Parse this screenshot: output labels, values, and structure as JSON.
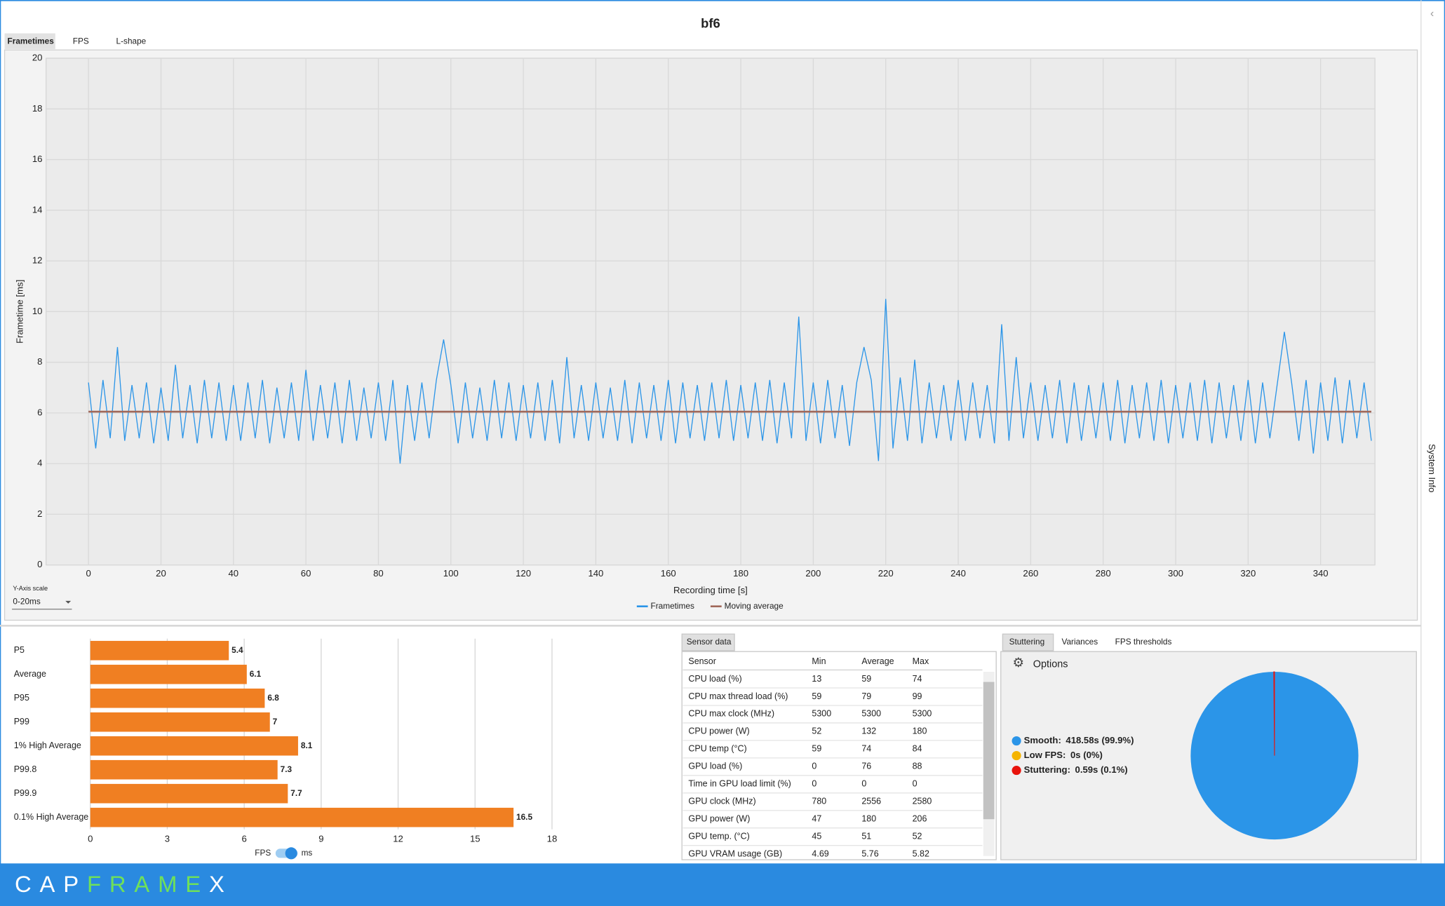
{
  "header": {
    "title": "bf6",
    "side_tab": "System Info",
    "logo": [
      "CAP",
      "FRAME",
      "X"
    ]
  },
  "tabs": [
    "Frametimes",
    "FPS",
    "L-shape"
  ],
  "chart_data": [
    {
      "type": "line",
      "ylabel": "Frametime [ms]",
      "xlabel": "Recording time [s]",
      "xlim": [
        -11.7,
        355
      ],
      "ylim": [
        0,
        20
      ],
      "xticks": [
        0,
        20,
        40,
        60,
        80,
        100,
        120,
        140,
        160,
        180,
        200,
        220,
        240,
        260,
        280,
        300,
        320,
        340
      ],
      "yticks": [
        0,
        2,
        4,
        6,
        8,
        10,
        12,
        14,
        16,
        18,
        20
      ],
      "grid": true,
      "legend": "bottom",
      "y_axis_scale": {
        "label": "Y-Axis scale",
        "value": "0-20ms"
      },
      "series": [
        {
          "name": "Frametimes",
          "color": "#2b95e8",
          "x": [
            0,
            2,
            4,
            6,
            8,
            10,
            12,
            14,
            16,
            18,
            20,
            22,
            24,
            26,
            28,
            30,
            32,
            34,
            36,
            38,
            40,
            42,
            44,
            46,
            48,
            50,
            52,
            54,
            56,
            58,
            60,
            62,
            64,
            66,
            68,
            70,
            72,
            74,
            76,
            78,
            80,
            82,
            84,
            86,
            88,
            90,
            92,
            94,
            96,
            98,
            100,
            102,
            104,
            106,
            108,
            110,
            112,
            114,
            116,
            118,
            120,
            122,
            124,
            126,
            128,
            130,
            132,
            134,
            136,
            138,
            140,
            142,
            144,
            146,
            148,
            150,
            152,
            154,
            156,
            158,
            160,
            162,
            164,
            166,
            168,
            170,
            172,
            174,
            176,
            178,
            180,
            182,
            184,
            186,
            188,
            190,
            192,
            194,
            196,
            198,
            200,
            202,
            204,
            206,
            208,
            210,
            212,
            214,
            216,
            218,
            220,
            222,
            224,
            226,
            228,
            230,
            232,
            234,
            236,
            238,
            240,
            242,
            244,
            246,
            248,
            250,
            252,
            254,
            256,
            258,
            260,
            262,
            264,
            266,
            268,
            270,
            272,
            274,
            276,
            278,
            280,
            282,
            284,
            286,
            288,
            290,
            292,
            294,
            296,
            298,
            300,
            302,
            304,
            306,
            308,
            310,
            312,
            314,
            316,
            318,
            320,
            322,
            324,
            326,
            328,
            330,
            332,
            334,
            336,
            338,
            340,
            342,
            344,
            346,
            348,
            350,
            352,
            354
          ],
          "values": [
            7.2,
            4.6,
            7.3,
            5.0,
            8.6,
            4.9,
            7.1,
            5.0,
            7.2,
            4.8,
            7.0,
            4.9,
            7.9,
            5.0,
            7.1,
            4.8,
            7.3,
            5.0,
            7.2,
            4.9,
            7.1,
            4.9,
            7.2,
            5.0,
            7.3,
            4.8,
            7.0,
            5.0,
            7.2,
            4.9,
            7.7,
            4.9,
            7.1,
            5.0,
            7.2,
            4.8,
            7.3,
            4.9,
            7.0,
            5.0,
            7.2,
            4.9,
            7.3,
            4.0,
            7.1,
            4.9,
            7.2,
            5.0,
            7.3,
            8.9,
            7.1,
            4.8,
            7.2,
            5.0,
            7.0,
            4.9,
            7.3,
            5.0,
            7.2,
            4.9,
            7.1,
            5.0,
            7.2,
            4.9,
            7.3,
            4.8,
            8.2,
            5.0,
            7.1,
            4.9,
            7.2,
            5.0,
            7.0,
            4.9,
            7.3,
            4.8,
            7.2,
            5.0,
            7.1,
            4.9,
            7.3,
            4.8,
            7.2,
            5.0,
            7.1,
            4.9,
            7.2,
            5.0,
            7.3,
            4.9,
            7.1,
            5.0,
            7.2,
            4.9,
            7.3,
            4.8,
            7.2,
            5.0,
            9.8,
            4.9,
            7.2,
            4.8,
            7.3,
            5.0,
            7.1,
            4.7,
            7.2,
            8.6,
            7.3,
            4.1,
            10.5,
            4.6,
            7.4,
            4.9,
            8.1,
            4.8,
            7.2,
            5.0,
            7.1,
            4.9,
            7.3,
            4.9,
            7.2,
            5.0,
            7.1,
            4.8,
            9.5,
            4.9,
            8.2,
            5.0,
            7.2,
            4.9,
            7.1,
            5.0,
            7.3,
            4.8,
            7.2,
            4.9,
            7.1,
            5.0,
            7.2,
            4.9,
            7.3,
            4.8,
            7.1,
            5.0,
            7.2,
            4.9,
            7.3,
            4.8,
            7.1,
            5.0,
            7.2,
            4.9,
            7.3,
            4.8,
            7.2,
            5.0,
            7.1,
            4.9,
            7.3,
            4.8,
            7.2,
            5.0,
            7.1,
            9.2,
            7.2,
            4.9,
            7.3,
            4.4,
            7.2,
            4.9,
            7.4,
            4.8,
            7.3,
            5.0,
            7.2,
            4.9
          ]
        },
        {
          "name": "Moving average",
          "color": "#a0685a",
          "x": [
            0,
            354
          ],
          "values": [
            6.05,
            6.05
          ]
        }
      ]
    },
    {
      "type": "hbar",
      "categories": [
        "P5",
        "Average",
        "P95",
        "P99",
        "1% High Average",
        "P99.8",
        "P99.9",
        "0.1% High Average"
      ],
      "values": [
        5.4,
        6.1,
        6.8,
        7,
        8.1,
        7.3,
        7.7,
        16.5
      ],
      "color": "#f07f22",
      "xlim": [
        0,
        18
      ],
      "xticks": [
        0,
        3,
        6,
        9,
        12,
        15,
        18
      ],
      "grid": true,
      "toggle": [
        "FPS",
        "ms"
      ]
    },
    {
      "type": "pie",
      "categories": [
        "Smooth:",
        "Low FPS:",
        "Stuttering:"
      ],
      "values": [
        418.58,
        0,
        0.59
      ],
      "value_labels": [
        "418.58s (99.9%)",
        "0s (0%)",
        "0.59s (0.1%)"
      ],
      "colors": [
        "#2b95e8",
        "#f5b400",
        "#e8130c"
      ]
    }
  ],
  "sensor_panel": {
    "tab": "Sensor data",
    "table": {
      "columns": [
        "Sensor",
        "Min",
        "Average",
        "Max"
      ],
      "rows": [
        [
          "CPU load (%)",
          13,
          59,
          74
        ],
        [
          "CPU max thread load (%)",
          59,
          79,
          99
        ],
        [
          "CPU max clock (MHz)",
          5300,
          5300,
          5300
        ],
        [
          "CPU power (W)",
          52,
          132,
          180
        ],
        [
          "CPU temp (°C)",
          59,
          74,
          84
        ],
        [
          "GPU load (%)",
          0,
          76,
          88
        ],
        [
          "Time in GPU load limit (%)",
          0,
          0,
          0
        ],
        [
          "GPU clock (MHz)",
          780,
          2556,
          2580
        ],
        [
          "GPU power (W)",
          47,
          180,
          206
        ],
        [
          "GPU temp. (°C)",
          45,
          51,
          52
        ],
        [
          "GPU VRAM usage (GB)",
          4.69,
          5.76,
          5.82
        ]
      ]
    }
  },
  "stutter_panel": {
    "tabs": [
      "Stuttering",
      "Variances",
      "FPS thresholds"
    ],
    "options": "Options"
  }
}
